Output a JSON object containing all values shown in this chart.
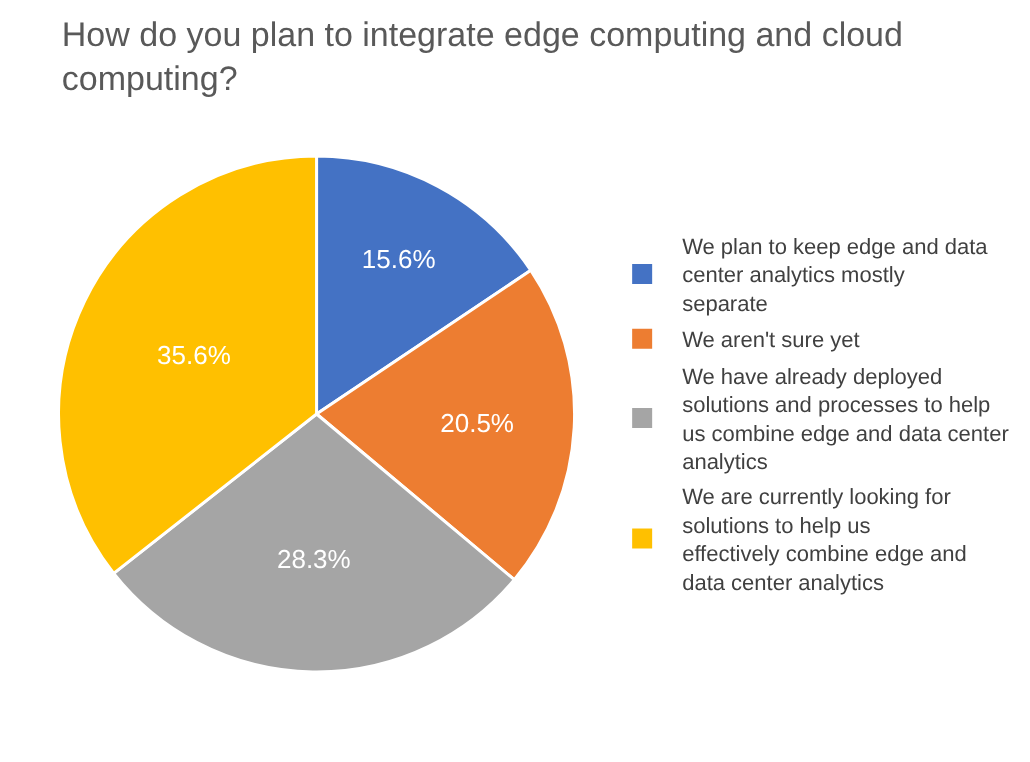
{
  "chart_data": {
    "type": "pie",
    "title": "How do you plan to integrate edge computing and cloud computing?",
    "categories": [
      "We plan to keep edge and data center analytics mostly separate",
      "We aren't sure yet",
      "We have already deployed solutions and processes to help us combine edge and data center analytics",
      "We are currently looking for solutions to help us effectively combine edge and data center analytics"
    ],
    "values": [
      15.6,
      20.5,
      28.3,
      35.6
    ],
    "value_labels": [
      "15.6%",
      "20.5%",
      "28.3%",
      "35.6%"
    ],
    "colors": [
      "#4472c4",
      "#ed7d31",
      "#a5a5a5",
      "#ffc000"
    ],
    "legend": "right"
  }
}
